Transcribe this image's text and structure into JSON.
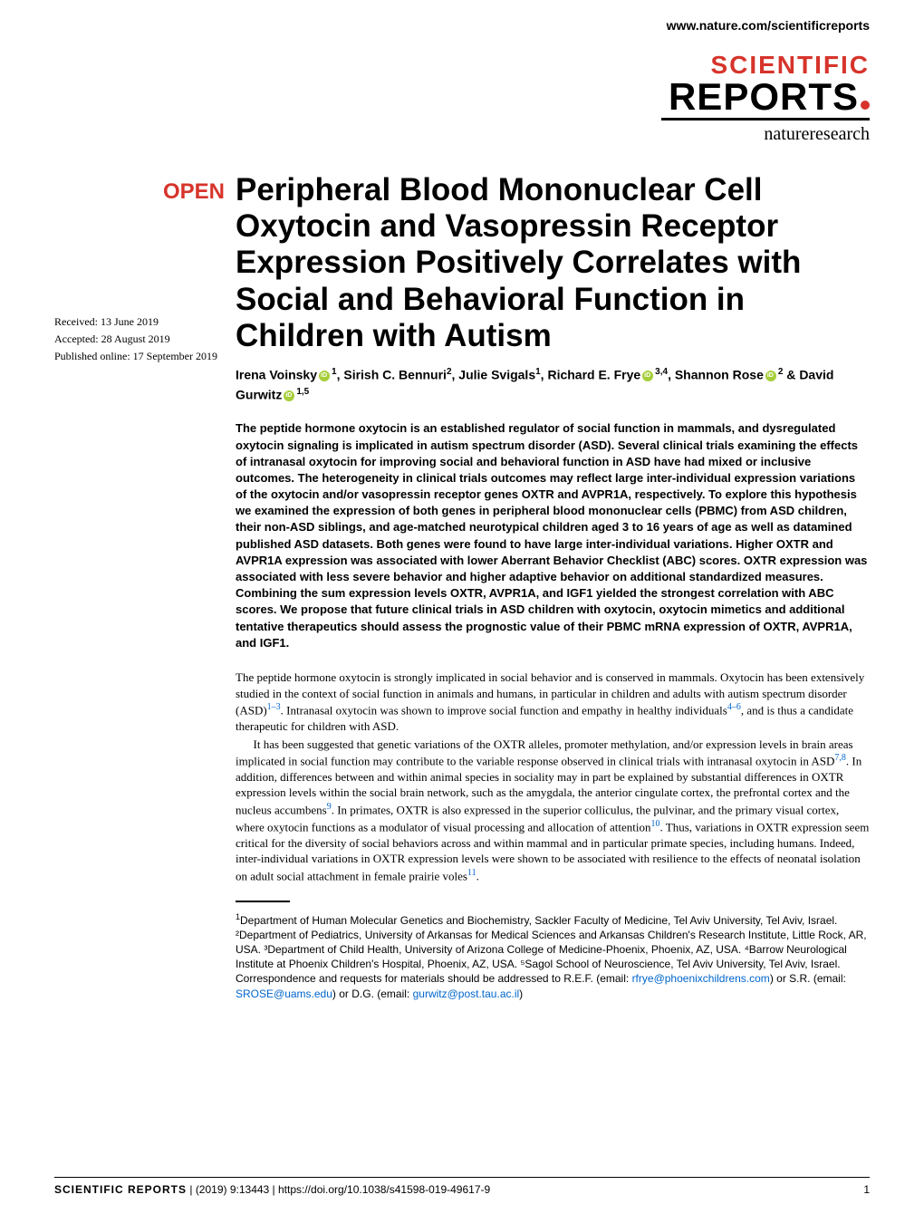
{
  "header": {
    "url": "www.nature.com/scientificreports",
    "logo_scientific": "SCIENTIFIC",
    "logo_reports": "REPORTS",
    "logo_nature": "natureresearch",
    "logo_colors": {
      "scientific": "#d6342b",
      "reports": "#000000",
      "nature": "#000000"
    }
  },
  "badge": {
    "text": "OPEN",
    "color": "#d6342b"
  },
  "dates": {
    "received": "Received: 13 June 2019",
    "accepted": "Accepted: 28 August 2019",
    "published": "Published online: 17 September 2019"
  },
  "title": "Peripheral Blood Mononuclear Cell Oxytocin and Vasopressin Receptor Expression Positively Correlates with Social and Behavioral Function in Children with Autism",
  "authors": {
    "a1": "Irena Voinsky",
    "a1_aff": "1",
    "a2": "Sirish C. Bennuri",
    "a2_aff": "2",
    "a3": "Julie Svigals",
    "a3_aff": "1",
    "a4": "Richard E. Frye",
    "a4_aff": "3,4",
    "a5": "Shannon Rose",
    "a5_aff": "2",
    "a6": "David Gurwitz",
    "a6_aff": "1,5"
  },
  "abstract": "The peptide hormone oxytocin is an established regulator of social function in mammals, and dysregulated oxytocin signaling is implicated in autism spectrum disorder (ASD). Several clinical trials examining the effects of intranasal oxytocin for improving social and behavioral function in ASD have had mixed or inclusive outcomes. The heterogeneity in clinical trials outcomes may reflect large inter-individual expression variations of the oxytocin and/or vasopressin receptor genes OXTR and AVPR1A, respectively. To explore this hypothesis we examined the expression of both genes in peripheral blood mononuclear cells (PBMC) from ASD children, their non-ASD siblings, and age-matched neurotypical children aged 3 to 16 years of age as well as datamined published ASD datasets. Both genes were found to have large inter-individual variations. Higher OXTR and AVPR1A expression was associated with lower Aberrant Behavior Checklist (ABC) scores. OXTR expression was associated with less severe behavior and higher adaptive behavior on additional standardized measures. Combining the sum expression levels OXTR, AVPR1A, and IGF1 yielded the strongest correlation with ABC scores. We propose that future clinical trials in ASD children with oxytocin, oxytocin mimetics and additional tentative therapeutics should assess the prognostic value of their PBMC mRNA expression of OXTR, AVPR1A, and IGF1.",
  "body": {
    "p1_a": "The peptide hormone oxytocin is strongly implicated in social behavior and is conserved in mammals. Oxytocin has been extensively studied in the context of social function in animals and humans, in particular in children and adults with autism spectrum disorder (ASD)",
    "p1_ref1": "1–3",
    "p1_b": ". Intranasal oxytocin was shown to improve social function and empathy in healthy individuals",
    "p1_ref2": "4–6",
    "p1_c": ", and is thus a candidate therapeutic for children with ASD.",
    "p2_a": "It has been suggested that genetic variations of the OXTR alleles, promoter methylation, and/or expression levels in brain areas implicated in social function may contribute to the variable response observed in clinical trials with intranasal oxytocin in ASD",
    "p2_ref1": "7,8",
    "p2_b": ". In addition, differences between and within animal species in sociality may in part be explained by substantial differences in OXTR expression levels within the social brain network, such as the amygdala, the anterior cingulate cortex, the prefrontal cortex and the nucleus accumbens",
    "p2_ref2": "9",
    "p2_c": ". In primates, OXTR is also expressed in the superior colliculus, the pulvinar, and the primary visual cortex, where oxytocin functions as a modulator of visual processing and allocation of attention",
    "p2_ref3": "10",
    "p2_d": ". Thus, variations in OXTR expression seem critical for the diversity of social behaviors across and within mammal and in particular primate species, including humans. Indeed, inter-individual variations in OXTR expression levels were shown to be associated with resilience to the effects of neonatal isolation on adult social attachment in female prairie voles",
    "p2_ref4": "11",
    "p2_e": "."
  },
  "affiliations": {
    "text": "Department of Human Molecular Genetics and Biochemistry, Sackler Faculty of Medicine, Tel Aviv University, Tel Aviv, Israel. ²Department of Pediatrics, University of Arkansas for Medical Sciences and Arkansas Children's Research Institute, Little Rock, AR, USA. ³Department of Child Health, University of Arizona College of Medicine-Phoenix, Phoenix, AZ, USA. ⁴Barrow Neurological Institute at Phoenix Children's Hospital, Phoenix, AZ, USA. ⁵Sagol School of Neuroscience, Tel Aviv University, Tel Aviv, Israel. Correspondence and requests for materials should be addressed to R.E.F. (email: ",
    "email1": "rfrye@phoenixchildrens.com",
    "text2": ") or S.R. (email: ",
    "email2": "SROSE@uams.edu",
    "text3": ") or D.G. (email: ",
    "email3": "gurwitz@post.tau.ac.il",
    "text4": ")"
  },
  "footer": {
    "journal": "SCIENTIFIC REPORTS",
    "citation": "(2019) 9:13443 | https://doi.org/10.1038/s41598-019-49617-9",
    "page": "1"
  },
  "colors": {
    "accent": "#d6342b",
    "link": "#0066cc",
    "orcid": "#a6ce39",
    "text": "#000000",
    "background": "#ffffff"
  },
  "typography": {
    "title_fontsize": 35,
    "author_fontsize": 14,
    "abstract_fontsize": 13,
    "body_fontsize": 13,
    "footer_fontsize": 12
  }
}
